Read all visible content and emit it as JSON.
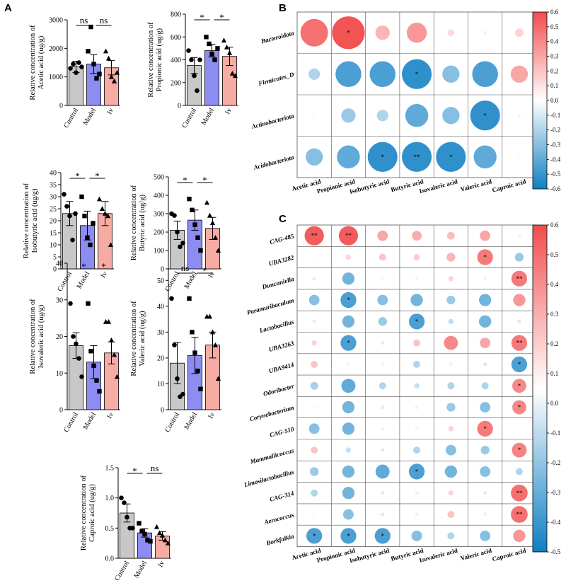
{
  "panels": {
    "A": "A",
    "B": "B",
    "C": "C"
  },
  "colors": {
    "control": "#c8c8c8",
    "model": "#8c8cf2",
    "iv": "#f6aba3",
    "neg": "#0f7fc4",
    "pos": "#f24d4d"
  },
  "chart_data": [
    {
      "type": "bar",
      "id": "acetic",
      "ylabel": [
        "Relative concentration of",
        "Acetic acid (ug/g)"
      ],
      "categories": [
        "Control",
        "Model",
        "Iv"
      ],
      "values": [
        1350,
        1450,
        1320
      ],
      "errors": [
        200,
        330,
        250
      ],
      "ylim": [
        0,
        3000
      ],
      "yticks": [
        "0",
        "1000",
        "2000",
        "3000"
      ],
      "ytick_values": [
        0,
        1000,
        2000,
        3000
      ],
      "points": [
        [
          1300,
          1450,
          1150,
          1500,
          1350
        ],
        [
          1900,
          2750,
          1450,
          950,
          1100
        ],
        [
          1900,
          1650,
          1000,
          850,
          1150
        ]
      ],
      "comparisons": [
        {
          "from": 0,
          "to": 1,
          "label": "ns"
        },
        {
          "from": 1,
          "to": 2,
          "label": "ns"
        }
      ]
    },
    {
      "type": "bar",
      "id": "propionic",
      "ylabel": [
        "Relative concentration of",
        "Propionic acid (ug/g)"
      ],
      "categories": [
        "Control",
        "Model",
        "Iv"
      ],
      "values": [
        350,
        480,
        430
      ],
      "errors": [
        70,
        55,
        80
      ],
      "ylim": [
        0,
        800
      ],
      "yticks": [
        "0",
        "200",
        "400",
        "600",
        "800"
      ],
      "ytick_values": [
        0,
        200,
        400,
        600,
        800
      ],
      "points": [
        [
          480,
          400,
          260,
          130,
          400
        ],
        [
          600,
          540,
          450,
          400,
          500
        ],
        [
          570,
          510,
          460,
          280,
          260
        ]
      ],
      "comparisons": [
        {
          "from": 0,
          "to": 1,
          "label": "*"
        },
        {
          "from": 1,
          "to": 2,
          "label": "*"
        }
      ]
    },
    {
      "type": "bar",
      "id": "isobutyric",
      "ylabel": [
        "Relative concentration of",
        "Isobutyric acid (ug/g)"
      ],
      "categories": [
        "Control",
        "Model",
        "Iv"
      ],
      "values": [
        23,
        18,
        23
      ],
      "errors": [
        5,
        6,
        5
      ],
      "ylim": [
        0,
        40
      ],
      "yticks": [
        "0",
        "5",
        "10",
        "15",
        "20",
        "25",
        "30",
        "35",
        "40"
      ],
      "ytick_values": [
        0,
        5,
        10,
        15,
        20,
        25,
        30,
        35,
        40
      ],
      "points": [
        [
          31,
          26,
          22,
          12,
          23
        ],
        [
          30,
          22,
          13,
          10,
          19
        ],
        [
          29,
          25,
          23,
          22,
          10
        ]
      ],
      "comparisons": [
        {
          "from": 0,
          "to": 1,
          "label": "*"
        },
        {
          "from": 1,
          "to": 2,
          "label": "*"
        }
      ]
    },
    {
      "type": "bar",
      "id": "butyric",
      "ylabel": [
        "Relative concentration of",
        "Butyric acid (ug/g)"
      ],
      "categories": [
        "Control",
        "Model",
        "Iv"
      ],
      "values": [
        210,
        265,
        220
      ],
      "errors": [
        50,
        55,
        60
      ],
      "ylim": [
        0,
        500
      ],
      "yticks": [
        "0",
        "100",
        "200",
        "300",
        "400",
        "500"
      ],
      "ytick_values": [
        0,
        100,
        200,
        300,
        400,
        500
      ],
      "points": [
        [
          300,
          290,
          200,
          120,
          140
        ],
        [
          380,
          320,
          240,
          170,
          100
        ],
        [
          360,
          290,
          250,
          170,
          100
        ]
      ],
      "comparisons": [
        {
          "from": 0,
          "to": 1,
          "label": "*"
        },
        {
          "from": 1,
          "to": 2,
          "label": "*"
        }
      ]
    },
    {
      "type": "bar",
      "id": "isovaleric",
      "ylabel": [
        "Relative concentration of",
        "Isovaleric acid (ug/g)"
      ],
      "categories": [
        "Control",
        "Model",
        "Iv"
      ],
      "values": [
        17.5,
        13,
        15.5
      ],
      "errors": [
        3.5,
        4.5,
        3
      ],
      "ylim": [
        0,
        40
      ],
      "yticks": [
        "0",
        "10",
        "20",
        "30",
        "40"
      ],
      "ytick_values": [
        0,
        10,
        20,
        30,
        40
      ],
      "points": [
        [
          29,
          20,
          18,
          14,
          9
        ],
        [
          29,
          16,
          12,
          8,
          5
        ],
        [
          24,
          24,
          19,
          15,
          9
        ]
      ],
      "comparisons": [
        {
          "from": 0,
          "to": 1,
          "label": "*"
        },
        {
          "from": 1,
          "to": 2,
          "label": "*"
        }
      ]
    },
    {
      "type": "bar",
      "id": "valeric",
      "ylabel": [
        "Relative concentration of",
        "Valeric acid (ug/g)"
      ],
      "categories": [
        "Control",
        "Model",
        "Iv"
      ],
      "values": [
        18,
        21,
        25
      ],
      "errors": [
        8,
        7,
        5
      ],
      "ylim": [
        0,
        55
      ],
      "yticks": [
        "0",
        "10",
        "20",
        "30",
        "40",
        "50"
      ],
      "ytick_values": [
        0,
        10,
        20,
        30,
        40,
        50
      ],
      "points": [
        [
          43,
          25,
          12,
          5,
          6
        ],
        [
          43,
          30,
          22,
          15,
          8
        ],
        [
          36,
          36,
          30,
          25,
          12
        ]
      ],
      "comparisons": [
        {
          "from": 0,
          "to": 1,
          "label": "ns"
        },
        {
          "from": 1,
          "to": 2,
          "label": "*"
        }
      ]
    },
    {
      "type": "bar",
      "id": "caproic",
      "ylabel": [
        "Relative concentration of",
        "Caproic acid (ug/g)"
      ],
      "categories": [
        "Control",
        "Model",
        "Iv"
      ],
      "values": [
        0.75,
        0.42,
        0.37
      ],
      "errors": [
        0.15,
        0.07,
        0.07
      ],
      "ylim": [
        0,
        1.5
      ],
      "yticks": [
        "0.0",
        "0.5",
        "1.0",
        "1.5"
      ],
      "ytick_values": [
        0,
        0.5,
        1.0,
        1.5
      ],
      "points": [
        [
          1.0,
          0.92,
          0.68,
          0.5,
          0.5
        ],
        [
          0.58,
          0.45,
          0.4,
          0.3,
          0.28
        ],
        [
          0.52,
          0.42,
          0.38,
          0.3,
          0.25
        ]
      ],
      "comparisons": [
        {
          "from": 0,
          "to": 1,
          "label": "*"
        },
        {
          "from": 1,
          "to": 2,
          "label": "ns"
        }
      ]
    },
    {
      "type": "heatmap",
      "id": "B",
      "rows": [
        "Bacteroidota",
        "Firmicutes_D",
        "Actinobacteriota",
        "Acidobacteriota"
      ],
      "columns": [
        "Acetic acid",
        "Propionic acid",
        "Isobutyric acid",
        "Butyric acid",
        "Isovaleric acid",
        "Valeric acid",
        "Caproic acid"
      ],
      "values": [
        [
          0.48,
          0.58,
          0.25,
          0.35,
          0.12,
          -0.05,
          0.15
        ],
        [
          -0.2,
          -0.45,
          -0.45,
          -0.52,
          -0.3,
          -0.45,
          0.3
        ],
        [
          -0.02,
          -0.25,
          -0.2,
          -0.4,
          -0.3,
          -0.52,
          0.05
        ],
        [
          -0.3,
          -0.4,
          -0.52,
          -0.52,
          -0.52,
          -0.4,
          -0.02
        ]
      ],
      "stars": [
        [
          "",
          "*",
          "",
          "",
          "",
          "",
          ""
        ],
        [
          "",
          "",
          "",
          "*",
          "",
          "",
          ""
        ],
        [
          "",
          "",
          "",
          "",
          "",
          "*",
          ""
        ],
        [
          "",
          "",
          "*",
          "**",
          "*",
          "",
          ""
        ]
      ],
      "colorbar": {
        "min": -0.6,
        "max": 0.6,
        "ticks": [
          "0.6",
          "0.5",
          "0.4",
          "0.3",
          "0.2",
          "0.1",
          "0.0",
          "-0.1",
          "-0.2",
          "-0.3",
          "-0.4",
          "-0.5",
          "-0.6"
        ],
        "tick_values": [
          0.6,
          0.5,
          0.4,
          0.3,
          0.2,
          0.1,
          0.0,
          -0.1,
          -0.2,
          -0.3,
          -0.4,
          -0.5,
          -0.6
        ]
      }
    },
    {
      "type": "heatmap",
      "id": "C",
      "rows": [
        "CAG-485",
        "UBA3282",
        "Duncaniella",
        "Paramuribaculum",
        "Lactobacillus",
        "UBA3263",
        "UBA9414",
        "Odoribacter",
        "Corynebacterium",
        "CAG-510",
        "Mammaliicoccus",
        "Limosilactobacillus",
        "CAG-314",
        "Aerococcus",
        "Borkfalkia"
      ],
      "columns": [
        "Acetic acid",
        "Propionic acid",
        "Isobutyric acid",
        "Butyric acid",
        "Isovaleric acid",
        "Valeric acid",
        "Caproic acid"
      ],
      "values": [
        [
          0.55,
          0.55,
          0.3,
          0.28,
          0.22,
          0.3,
          -0.05
        ],
        [
          0.02,
          0.15,
          0.2,
          0.18,
          0.25,
          0.45,
          -0.25
        ],
        [
          0.08,
          -0.35,
          -0.02,
          0.05,
          0.15,
          0.05,
          0.45
        ],
        [
          -0.3,
          -0.45,
          -0.3,
          -0.35,
          -0.25,
          -0.35,
          0.35
        ],
        [
          -0.08,
          -0.35,
          -0.25,
          -0.45,
          -0.15,
          -0.35,
          -0.1
        ],
        [
          0.15,
          -0.45,
          0.1,
          0.2,
          0.4,
          0.3,
          0.45
        ],
        [
          0.2,
          0.05,
          0.05,
          -0.2,
          -0.05,
          -0.1,
          -0.45
        ],
        [
          -0.22,
          -0.4,
          -0.2,
          -0.15,
          -0.2,
          -0.2,
          0.4
        ],
        [
          -0.02,
          -0.35,
          -0.08,
          -0.05,
          -0.25,
          -0.3,
          0.4
        ],
        [
          -0.3,
          -0.35,
          -0.05,
          0.05,
          0.15,
          0.45,
          0.0
        ],
        [
          0.2,
          -0.15,
          -0.1,
          -0.2,
          -0.3,
          -0.25,
          0.42
        ],
        [
          -0.25,
          -0.35,
          -0.4,
          -0.45,
          -0.35,
          -0.3,
          -0.2
        ],
        [
          -0.2,
          -0.35,
          -0.1,
          -0.05,
          0.15,
          0.1,
          0.48
        ],
        [
          -0.02,
          -0.3,
          -0.1,
          -0.05,
          0.2,
          -0.05,
          0.48
        ],
        [
          -0.45,
          -0.45,
          -0.45,
          -0.3,
          -0.2,
          -0.3,
          0.35
        ]
      ],
      "stars": [
        [
          "**",
          "**",
          "",
          "",
          "",
          "",
          ""
        ],
        [
          "",
          "",
          "",
          "",
          "",
          "*",
          ""
        ],
        [
          "",
          "",
          "",
          "",
          "",
          "",
          "**"
        ],
        [
          "",
          "*",
          "",
          "",
          "",
          "",
          ""
        ],
        [
          "",
          "",
          "",
          "*",
          "",
          "",
          ""
        ],
        [
          "",
          "*",
          "",
          "",
          "",
          "",
          "**"
        ],
        [
          "",
          "",
          "",
          "",
          "",
          "",
          "*"
        ],
        [
          "",
          "",
          "",
          "",
          "",
          "",
          "*"
        ],
        [
          "",
          "",
          "",
          "",
          "",
          "",
          "*"
        ],
        [
          "",
          "",
          "",
          "",
          "",
          "*",
          ""
        ],
        [
          "",
          "",
          "",
          "",
          "",
          "",
          "*"
        ],
        [
          "",
          "",
          "",
          "*",
          "",
          "",
          ""
        ],
        [
          "",
          "",
          "",
          "",
          "",
          "",
          "**"
        ],
        [
          "",
          "",
          "",
          "",
          "",
          "",
          "**"
        ],
        [
          "*",
          "*",
          "*",
          "",
          "",
          "",
          ""
        ]
      ],
      "colorbar": {
        "min": -0.5,
        "max": 0.6,
        "ticks": [
          "0.6",
          "0.5",
          "0.4",
          "0.3",
          "0.2",
          "0.1",
          "0.0",
          "-0.1",
          "-0.2",
          "-0.3",
          "-0.4",
          "-0.5"
        ],
        "tick_values": [
          0.6,
          0.5,
          0.4,
          0.3,
          0.2,
          0.1,
          0.0,
          -0.1,
          -0.2,
          -0.3,
          -0.4,
          -0.5
        ]
      }
    }
  ]
}
